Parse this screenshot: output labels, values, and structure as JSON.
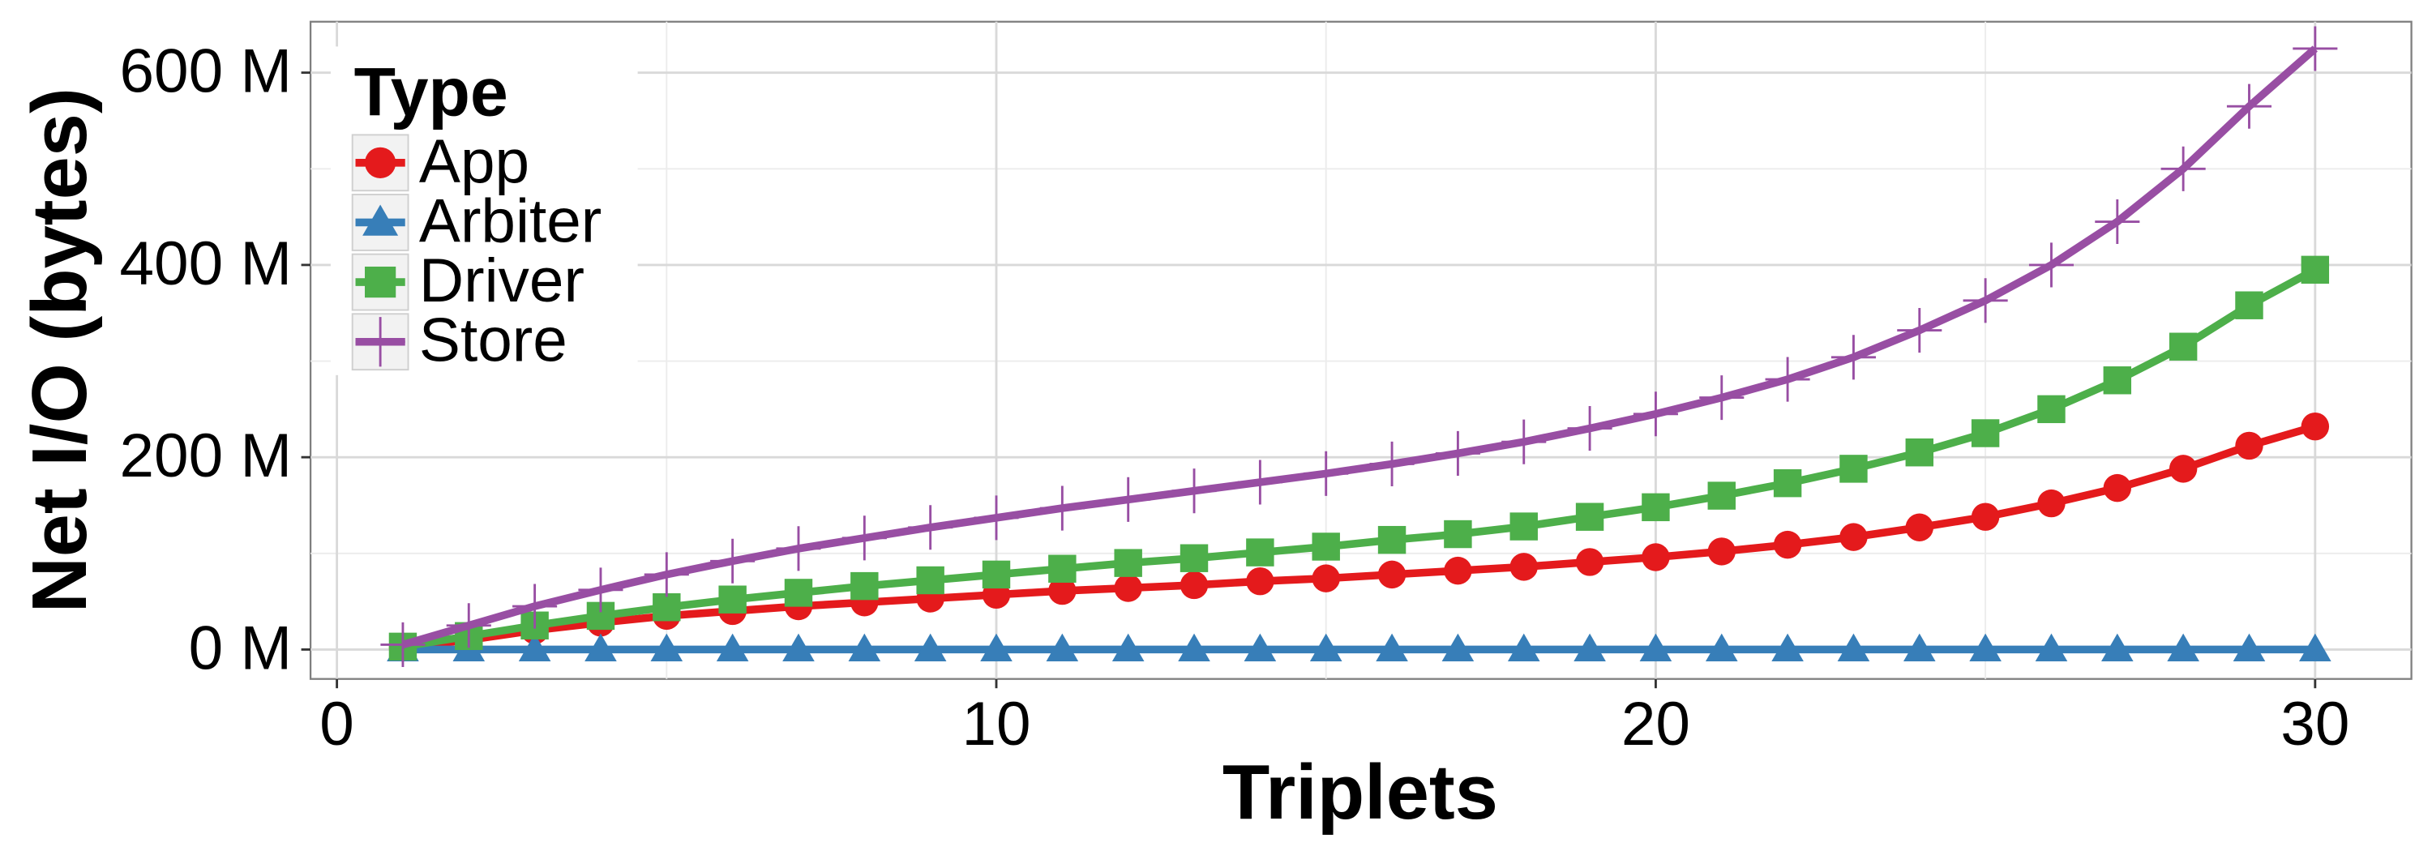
{
  "chart_data": {
    "type": "line",
    "x_label": "Triplets",
    "y_label": "Net I/O (bytes)",
    "x": [
      1,
      2,
      3,
      4,
      5,
      6,
      7,
      8,
      9,
      10,
      11,
      12,
      13,
      14,
      15,
      16,
      17,
      18,
      19,
      20,
      21,
      22,
      23,
      24,
      25,
      26,
      27,
      28,
      29,
      30
    ],
    "series": [
      {
        "name": "App",
        "color": "#e41a1c",
        "marker": "circle",
        "values": [
          2000000,
          10000000,
          20000000,
          28000000,
          35000000,
          40000000,
          45000000,
          49000000,
          53000000,
          57000000,
          61000000,
          64000000,
          67000000,
          71000000,
          74000000,
          78000000,
          82000000,
          86000000,
          91000000,
          96000000,
          102000000,
          109000000,
          117000000,
          127000000,
          138000000,
          152000000,
          168000000,
          188000000,
          212000000,
          232000000
        ]
      },
      {
        "name": "Arbiter",
        "color": "#377eb8",
        "marker": "triangle",
        "values": [
          0,
          0,
          0,
          0,
          0,
          0,
          0,
          0,
          0,
          0,
          0,
          0,
          0,
          0,
          0,
          0,
          0,
          0,
          0,
          0,
          0,
          0,
          0,
          0,
          0,
          0,
          0,
          0,
          0,
          0
        ]
      },
      {
        "name": "Driver",
        "color": "#4daf4a",
        "marker": "square",
        "values": [
          3000000,
          14000000,
          25000000,
          35000000,
          44000000,
          52000000,
          59000000,
          66000000,
          72000000,
          78000000,
          84000000,
          90000000,
          95000000,
          101000000,
          107000000,
          114000000,
          120000000,
          128000000,
          138000000,
          148000000,
          160000000,
          173000000,
          188000000,
          205000000,
          225000000,
          250000000,
          280000000,
          315000000,
          358000000,
          395000000
        ]
      },
      {
        "name": "Store",
        "color": "#984ea3",
        "marker": "plus",
        "values": [
          5000000,
          25000000,
          45000000,
          62000000,
          78000000,
          92000000,
          105000000,
          116000000,
          127000000,
          137000000,
          147000000,
          156000000,
          165000000,
          174000000,
          183000000,
          193000000,
          204000000,
          216000000,
          230000000,
          245000000,
          262000000,
          281000000,
          304000000,
          332000000,
          363000000,
          400000000,
          445000000,
          500000000,
          565000000,
          625000000
        ]
      }
    ],
    "legend_title": "Type",
    "legend": "top-left",
    "xlim": [
      -0.4,
      31.46
    ],
    "xticks": [
      0,
      10,
      20,
      30
    ],
    "x_minor_ticks": [
      5,
      15,
      25
    ],
    "ylim": [
      -30600000,
      653000000
    ],
    "yticks": [
      {
        "value": 0,
        "label": "0 M"
      },
      {
        "value": 200000000,
        "label": "200 M"
      },
      {
        "value": 400000000,
        "label": "400 M"
      },
      {
        "value": 600000000,
        "label": "600 M"
      }
    ],
    "y_minor_ticks": [
      100000000,
      300000000,
      500000000
    ],
    "grid": true
  }
}
